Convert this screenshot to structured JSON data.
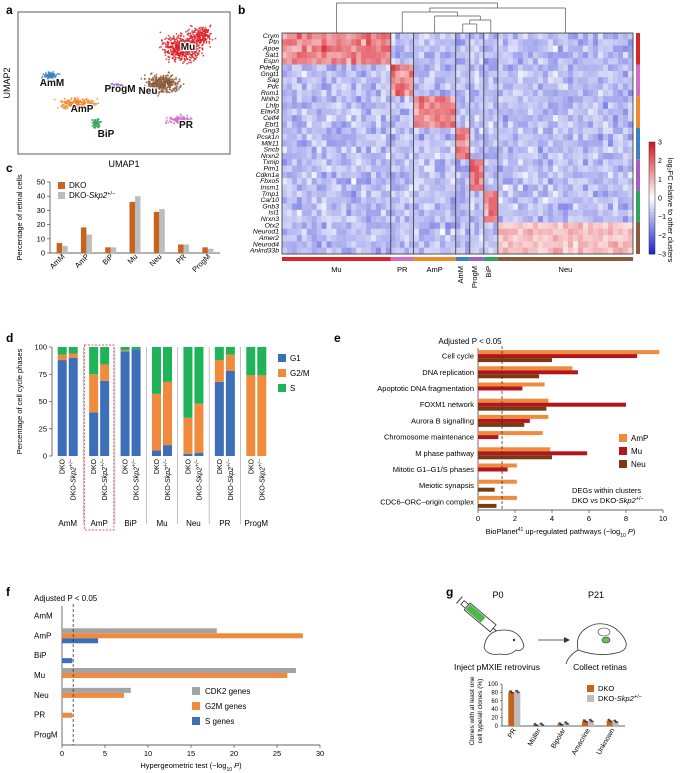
{
  "panels": {
    "a": "a",
    "b": "b",
    "c": "c",
    "d": "d",
    "e": "e",
    "f": "f",
    "g": "g"
  },
  "colors": {
    "dko": "#C8631E",
    "dko_skp2": "#BDBDBD",
    "g1": "#3D6FB8",
    "g2m": "#F08A3C",
    "s": "#1FB35A",
    "amp": "#F08A3C",
    "mu": "#B3151C",
    "neu": "#7A3B12",
    "cdk2": "#A3A3A3",
    "g2m_genes": "#F08A3C",
    "s_genes": "#3D6FB8"
  },
  "panel_a": {
    "xlabel": "UMAP1",
    "ylabel": "UMAP2",
    "clusters": [
      {
        "label": "Mu",
        "color": "#D9262C"
      },
      {
        "label": "Neu",
        "color": "#8B5A3C"
      },
      {
        "label": "AmM",
        "color": "#3B7FC4"
      },
      {
        "label": "ProgM",
        "color": "#A55BC4"
      },
      {
        "label": "AmP",
        "color": "#F08A2C"
      },
      {
        "label": "BiP",
        "color": "#2EA35A"
      },
      {
        "label": "PR",
        "color": "#D46BC4"
      }
    ]
  },
  "panel_b": {
    "genes": [
      "Crym",
      "Ptn",
      "Apoe",
      "Sat1",
      "Espn",
      "Pde6g",
      "Gngt1",
      "Sag",
      "Pdc",
      "Rom1",
      "Nhlh2",
      "Lhfp",
      "Elavl3",
      "Celf4",
      "Ebf1",
      "Gng3",
      "Pcsk1n",
      "Mllt11",
      "Sncb",
      "Nrxn2",
      "Txnip",
      "Pim1",
      "Cdkn1a",
      "Fbxo5",
      "Insm1",
      "Trnp1",
      "Car10",
      "Gnb3",
      "Isl1",
      "Nrxn3",
      "Otx2",
      "Neurod1",
      "Amer2",
      "Neurod4",
      "Ankrd33b"
    ],
    "clusters": [
      {
        "label": "Mu",
        "color": "#D9262C",
        "w": 0.31
      },
      {
        "label": "PR",
        "color": "#D46BC4",
        "w": 0.065
      },
      {
        "label": "AmP",
        "color": "#F08A2C",
        "w": 0.12
      },
      {
        "label": "AmM",
        "color": "#3B7FC4",
        "w": 0.04
      },
      {
        "label": "ProgM",
        "color": "#A55BC4",
        "w": 0.04
      },
      {
        "label": "BiP",
        "color": "#2EA35A",
        "w": 0.04
      },
      {
        "label": "Neu",
        "color": "#8B5A3C",
        "w": 0.385
      }
    ],
    "side_colors": [
      "#D9262C",
      "#D46BC4",
      "#F08A2C",
      "#3B7FC4",
      "#A55BC4",
      "#2EA35A",
      "#8B5A3C"
    ],
    "colorbar": {
      "title": "log₂FC relative to other clusters",
      "ticks": [
        "3",
        "2",
        "1",
        "0",
        "−1",
        "−2",
        "−3"
      ]
    }
  },
  "chart_data": [
    {
      "type": "bar",
      "panel": "c",
      "categories": [
        "AmM",
        "AmP",
        "BiP",
        "Mu",
        "Neu",
        "PR",
        "ProgM"
      ],
      "series": [
        {
          "name": "DKO",
          "values": [
            7,
            18,
            4,
            36,
            29,
            6,
            4
          ]
        },
        {
          "name": "DKO-Skp2+/−",
          "values": [
            5,
            13,
            4,
            40,
            31,
            6,
            3
          ]
        }
      ],
      "ylabel": "Percentage of retinal cells",
      "ylim": [
        0,
        50
      ],
      "yticks": [
        0,
        10,
        20,
        30,
        40,
        50
      ]
    },
    {
      "type": "bar",
      "panel": "d",
      "stacked": true,
      "groups": [
        "AmM",
        "AmP",
        "BiP",
        "Mu",
        "Neu",
        "PR",
        "ProgM"
      ],
      "bars": [
        {
          "group": "AmM",
          "label": "DKO",
          "g1": 88,
          "g2m": 5,
          "s": 7
        },
        {
          "group": "AmM",
          "label": "DKO-Skp2+/−",
          "g1": 90,
          "g2m": 4,
          "s": 6
        },
        {
          "group": "AmP",
          "label": "DKO",
          "g1": 40,
          "g2m": 35,
          "s": 25
        },
        {
          "group": "AmP",
          "label": "DKO-Skp2+/−",
          "g1": 69,
          "g2m": 15,
          "s": 16
        },
        {
          "group": "BiP",
          "label": "DKO",
          "g1": 96,
          "g2m": 1,
          "s": 3
        },
        {
          "group": "BiP",
          "label": "DKO-Skp2+/−",
          "g1": 98,
          "g2m": 0,
          "s": 2
        },
        {
          "group": "Mu",
          "label": "DKO",
          "g1": 5,
          "g2m": 52,
          "s": 43
        },
        {
          "group": "Mu",
          "label": "DKO-Skp2+/−",
          "g1": 10,
          "g2m": 58,
          "s": 32
        },
        {
          "group": "Neu",
          "label": "DKO",
          "g1": 2,
          "g2m": 33,
          "s": 65
        },
        {
          "group": "Neu",
          "label": "DKO-Skp2+/−",
          "g1": 3,
          "g2m": 45,
          "s": 52
        },
        {
          "group": "PR",
          "label": "DKO",
          "g1": 68,
          "g2m": 20,
          "s": 12
        },
        {
          "group": "PR",
          "label": "DKO-Skp2+/−",
          "g1": 78,
          "g2m": 15,
          "s": 7
        },
        {
          "group": "ProgM",
          "label": "DKO",
          "g1": 0,
          "g2m": 74,
          "s": 26
        },
        {
          "group": "ProgM",
          "label": "DKO-Skp2+/−",
          "g1": 0,
          "g2m": 74,
          "s": 26
        }
      ],
      "legend": [
        "G1",
        "G2/M",
        "S"
      ],
      "ylabel": "Percentage of cell cycle phases",
      "ylim": [
        0,
        100
      ],
      "yticks": [
        0,
        25,
        50,
        75,
        100
      ]
    },
    {
      "type": "bar",
      "panel": "e",
      "orientation": "horizontal",
      "annotation": "Adjusted P < 0.05",
      "threshold": 1.3,
      "categories": [
        "Cell cycle",
        "DNA replication",
        "Apoptotic DNA fragmentation",
        "FOXM1 network",
        "Aurora B signalling",
        "Chromosome maintenance",
        "M phase pathway",
        "Mitotic G1–G1/S phases",
        "Meiotic synapsis",
        "CDC6–ORC–origin complex"
      ],
      "series": [
        {
          "name": "AmP",
          "values": [
            9.8,
            5.1,
            3.6,
            3.8,
            3.8,
            3.5,
            3.9,
            2.1,
            2.1,
            2.1
          ]
        },
        {
          "name": "Mu",
          "values": [
            8.6,
            5.4,
            2.4,
            8.0,
            2.8,
            1.1,
            5.9,
            1.6,
            0.0,
            0.0
          ]
        },
        {
          "name": "Neu",
          "values": [
            4.0,
            3.3,
            0.0,
            3.7,
            2.5,
            0.0,
            4.0,
            0.0,
            0.9,
            1.0
          ]
        }
      ],
      "note_line1": "DEGs within clusters",
      "note_line2": "DKO vs DKO-Skp2+/−",
      "xlabel": "BioPlanet41 up-regulated pathways (−log10 P)",
      "xlim": [
        0,
        10
      ],
      "xticks": [
        0,
        2,
        4,
        6,
        8,
        10
      ]
    },
    {
      "type": "bar",
      "panel": "f",
      "orientation": "horizontal",
      "annotation": "Adjusted P < 0.05",
      "threshold": 1.3,
      "categories": [
        "AmM",
        "AmP",
        "BiP",
        "Mu",
        "Neu",
        "PR",
        "ProgM"
      ],
      "series": [
        {
          "name": "CDK2 genes",
          "values": [
            0,
            18,
            0,
            27.2,
            8,
            0,
            0
          ]
        },
        {
          "name": "G2M genes",
          "values": [
            0,
            28,
            0,
            26.2,
            7.2,
            1.2,
            0
          ]
        },
        {
          "name": "S genes",
          "values": [
            0,
            4.2,
            1.2,
            0,
            0,
            0,
            0
          ]
        }
      ],
      "xlabel": "Hypergeometric test (−log10 P)",
      "xlim": [
        0,
        30
      ],
      "xticks": [
        0,
        5,
        10,
        15,
        20,
        25,
        30
      ]
    },
    {
      "type": "bar",
      "panel": "g",
      "categories": [
        "PR",
        "Müller",
        "Bipolar",
        "Amacrine",
        "Unknown"
      ],
      "series": [
        {
          "name": "DKO",
          "values": [
            81,
            3,
            5,
            12,
            13
          ]
        },
        {
          "name": "DKO-Skp2+/−",
          "values": [
            82,
            4,
            7,
            13,
            11
          ]
        }
      ],
      "ylabel": "Clones with at least one cell type/all clones (%)",
      "ylim": [
        0,
        100
      ],
      "yticks": [
        0,
        20,
        40,
        60,
        80,
        100
      ]
    }
  ],
  "panel_g": {
    "p0": "P0",
    "p21": "P21",
    "inject": "Inject pMXIE retrovirus",
    "collect": "Collect retinas"
  }
}
